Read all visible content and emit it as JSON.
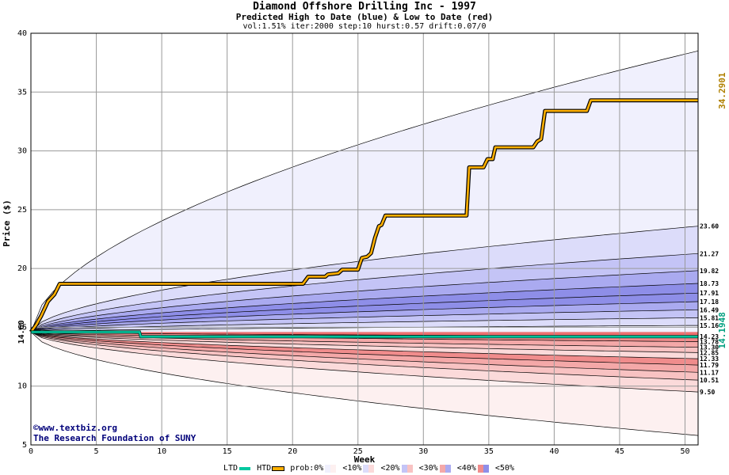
{
  "title": "Diamond Offshore Drilling Inc - 1997",
  "subtitle": "Predicted High to Date (blue) &  Low to Date (red)",
  "params": "vol:1.51% iter:2000 step:10 hurst:0.57 drift:0.07/0",
  "credit_line1": "©www.textbiz.org",
  "credit_line2": "The Research Foundation of SUNY",
  "legend": {
    "ltd": "LTD",
    "htd": "HTD",
    "prob": "prob:0%",
    "b10": "<10%",
    "b20": "<20%",
    "b30": "<30%",
    "b40": "<40%",
    "b50": "<50%"
  },
  "colors": {
    "ltd": "#00c8a0",
    "htd": "#ffb000",
    "upper_band": [
      "#f0f0fd",
      "#dcdcfa",
      "#c4c4f6",
      "#aaaaf0",
      "#8e8ee8",
      "#7070e0"
    ],
    "lower_band": [
      "#fdf0f0",
      "#fbdada",
      "#f8c2c2",
      "#f4a8a8",
      "#f08c8c",
      "#ec7070"
    ]
  },
  "chart_data": {
    "type": "area",
    "xlabel": "Week",
    "ylabel": "Price ($)",
    "xlim": [
      0,
      51
    ],
    "ylim": [
      5,
      40
    ],
    "xticks": [
      0,
      5,
      10,
      15,
      20,
      25,
      30,
      35,
      40,
      45,
      50
    ],
    "yticks": [
      5,
      10,
      15,
      20,
      25,
      30,
      35,
      40
    ],
    "grid": true,
    "start_price": 14.6,
    "start_label": "14.60",
    "right_labels": [
      "23.60",
      "21.27",
      "19.82",
      "18.73",
      "17.91",
      "17.18",
      "16.49",
      "15.81",
      "15.16",
      "14.23",
      "13.78",
      "13.30",
      "12.85",
      "12.33",
      "11.79",
      "11.17",
      "10.51",
      "9.50"
    ],
    "upper_percentile_levels": [
      38.5,
      23.6,
      21.27,
      19.82,
      18.73,
      17.91,
      17.18,
      16.49,
      15.81,
      15.16
    ],
    "lower_percentile_levels": [
      14.23,
      13.78,
      13.3,
      12.85,
      12.33,
      11.79,
      11.17,
      10.51,
      9.5,
      5.8
    ],
    "htd_final_label": "34.2901",
    "ltd_final_label": "14.1948",
    "htd_series": {
      "name": "HTD",
      "points": [
        [
          0,
          14.6
        ],
        [
          0.4,
          15.2
        ],
        [
          0.8,
          16.0
        ],
        [
          1.3,
          17.2
        ],
        [
          1.8,
          17.8
        ],
        [
          2.2,
          18.7
        ],
        [
          20.8,
          18.7
        ],
        [
          21.0,
          19.0
        ],
        [
          21.2,
          19.3
        ],
        [
          22.5,
          19.3
        ],
        [
          22.7,
          19.5
        ],
        [
          23.5,
          19.6
        ],
        [
          23.8,
          19.9
        ],
        [
          25.0,
          19.9
        ],
        [
          25.3,
          20.9
        ],
        [
          25.7,
          21.0
        ],
        [
          26.0,
          21.3
        ],
        [
          26.3,
          22.6
        ],
        [
          26.6,
          23.6
        ],
        [
          26.8,
          23.7
        ],
        [
          27.1,
          24.5
        ],
        [
          33.3,
          24.5
        ],
        [
          33.5,
          28.6
        ],
        [
          34.6,
          28.6
        ],
        [
          34.9,
          29.3
        ],
        [
          35.3,
          29.3
        ],
        [
          35.5,
          30.3
        ],
        [
          38.4,
          30.3
        ],
        [
          38.7,
          30.8
        ],
        [
          39.0,
          31.0
        ],
        [
          39.3,
          33.4
        ],
        [
          42.5,
          33.4
        ],
        [
          42.8,
          34.3
        ],
        [
          51,
          34.3
        ]
      ]
    },
    "ltd_series": {
      "name": "LTD",
      "points": [
        [
          0,
          14.6
        ],
        [
          8.3,
          14.6
        ],
        [
          8.4,
          14.2
        ],
        [
          51,
          14.2
        ]
      ]
    }
  }
}
